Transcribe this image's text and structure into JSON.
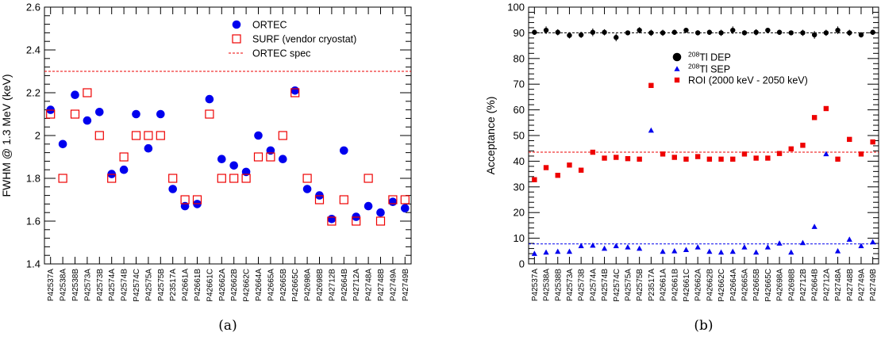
{
  "chart_data": [
    {
      "type": "scatter",
      "ylabel": "FWHM @ 1.3 MeV (keV)",
      "ylim": [
        1.4,
        2.6
      ],
      "yticks": [
        "1.4",
        "1.6",
        "1.8",
        "2",
        "2.2",
        "2.4",
        "2.6"
      ],
      "categories": [
        "P42537A",
        "P42538A",
        "P42538B",
        "P42573A",
        "P42573B",
        "P42574A",
        "P42574B",
        "P42574C",
        "P42575A",
        "P42575B",
        "P23517A",
        "P42661A",
        "P42661B",
        "P42661C",
        "P42662A",
        "P42662B",
        "P42662C",
        "P42664A",
        "P42665A",
        "P42665B",
        "P42665C",
        "P42698A",
        "P42698B",
        "P42712B",
        "P42664B",
        "P42712A",
        "P42748A",
        "P42748B",
        "P42749A",
        "P42749B"
      ],
      "series": [
        {
          "name": "ORTEC",
          "color": "#0000ee",
          "marker": "circle",
          "values": [
            2.12,
            1.96,
            2.19,
            2.07,
            2.11,
            1.82,
            1.84,
            2.1,
            1.94,
            2.1,
            1.75,
            1.67,
            1.68,
            2.17,
            1.89,
            1.86,
            1.83,
            2.0,
            1.93,
            1.89,
            2.21,
            1.75,
            1.72,
            1.61,
            1.93,
            1.62,
            1.67,
            1.64,
            1.69,
            1.66
          ]
        },
        {
          "name": "SURF (vendor cryostat)",
          "color": "#ee0000",
          "marker": "open-square",
          "values": [
            2.1,
            1.8,
            2.1,
            2.2,
            2.0,
            1.8,
            1.9,
            2.0,
            2.0,
            2.0,
            1.8,
            1.7,
            1.7,
            2.1,
            1.8,
            1.8,
            1.8,
            1.9,
            1.9,
            2.0,
            2.2,
            1.8,
            1.7,
            1.6,
            1.7,
            1.6,
            1.8,
            1.6,
            1.7,
            1.7
          ]
        }
      ],
      "reference_lines": [
        {
          "name": "ORTEC spec",
          "value": 2.3,
          "color": "#ee0000",
          "style": "dashed"
        }
      ],
      "legend": [
        {
          "label": "ORTEC",
          "marker": "circle",
          "color": "#0000ee"
        },
        {
          "label": "SURF (vendor cryostat)",
          "marker": "open-square",
          "color": "#ee0000"
        },
        {
          "label": "ORTEC spec",
          "marker": "dashed-line",
          "color": "#ee0000"
        }
      ],
      "legend_position": "top-right",
      "caption": "(a)"
    },
    {
      "type": "scatter",
      "ylabel": "Acceptance (%)",
      "ylim": [
        0,
        100
      ],
      "yticks": [
        "0",
        "10",
        "20",
        "30",
        "40",
        "50",
        "60",
        "70",
        "80",
        "90",
        "100"
      ],
      "categories": [
        "P42537A",
        "P42538A",
        "P42538B",
        "P42573A",
        "P42573B",
        "P42574A",
        "P42574B",
        "P42574C",
        "P42575A",
        "P42575B",
        "P23517A",
        "P42661A",
        "P42661B",
        "P42661C",
        "P42662A",
        "P42662B",
        "P42662C",
        "P42664A",
        "P42665A",
        "P42665B",
        "P42665C",
        "P42698A",
        "P42698B",
        "P42712B",
        "P42664B",
        "P42712A",
        "P42748A",
        "P42748B",
        "P42749A",
        "P42749B"
      ],
      "series": [
        {
          "name": "DEP",
          "color": "#000000",
          "marker": "circle-errorbar",
          "values": [
            90.2,
            91.0,
            90.2,
            89.0,
            89.2,
            90.2,
            90.2,
            88.2,
            90.0,
            91.0,
            90.0,
            90.0,
            90.2,
            91.0,
            90.0,
            90.2,
            90.0,
            91.0,
            90.0,
            90.2,
            91.0,
            90.2,
            90.0,
            90.0,
            89.2,
            90.0,
            91.0,
            90.0,
            89.2,
            90.2
          ],
          "errors": [
            1.0,
            1.5,
            1.2,
            1.2,
            1.2,
            1.5,
            1.2,
            1.5,
            0.8,
            1.2,
            1.2,
            1.2,
            1.0,
            0.8,
            1.0,
            1.0,
            1.2,
            1.5,
            1.0,
            1.2,
            0.8,
            1.0,
            0.8,
            1.2,
            1.5,
            1.2,
            1.5,
            1.2,
            1.0,
            1.0
          ]
        },
        {
          "name": "SEP",
          "color": "#0000ee",
          "marker": "triangle",
          "values": [
            4.0,
            4.5,
            4.8,
            4.8,
            7.0,
            7.2,
            6.0,
            7.0,
            6.5,
            6.0,
            52.0,
            4.8,
            5.0,
            5.5,
            6.5,
            4.8,
            4.5,
            4.8,
            6.5,
            4.5,
            6.5,
            8.0,
            4.5,
            8.2,
            14.5,
            42.8,
            5.0,
            9.5,
            7.0,
            8.5
          ]
        },
        {
          "name": "ROI (2000 keV - 2050 keV)",
          "color": "#ee0000",
          "marker": "square-errorbar",
          "values": [
            32.8,
            37.5,
            34.5,
            38.5,
            36.5,
            43.5,
            41.2,
            41.5,
            41.0,
            40.8,
            69.5,
            42.8,
            41.5,
            40.8,
            41.8,
            40.8,
            40.8,
            40.8,
            42.8,
            41.2,
            41.2,
            43.0,
            44.8,
            46.2,
            57.0,
            60.5,
            40.8,
            48.5,
            42.8,
            47.5
          ]
        }
      ],
      "reference_lines": [
        {
          "value": 90.0,
          "color": "#000000",
          "style": "dashed"
        },
        {
          "value": 7.8,
          "color": "#0000ee",
          "style": "dashed"
        },
        {
          "value": 43.5,
          "color": "#ee0000",
          "style": "dashed"
        }
      ],
      "legend": [
        {
          "sup": "208",
          "label": "Tl DEP",
          "marker": "circle",
          "color": "#000000"
        },
        {
          "sup": "208",
          "label": "Tl SEP",
          "marker": "triangle",
          "color": "#0000ee"
        },
        {
          "sup": "",
          "label": "ROI (2000 keV - 2050 keV)",
          "marker": "square",
          "color": "#ee0000"
        }
      ],
      "legend_position": "upper-middle",
      "caption": "(b)"
    }
  ]
}
